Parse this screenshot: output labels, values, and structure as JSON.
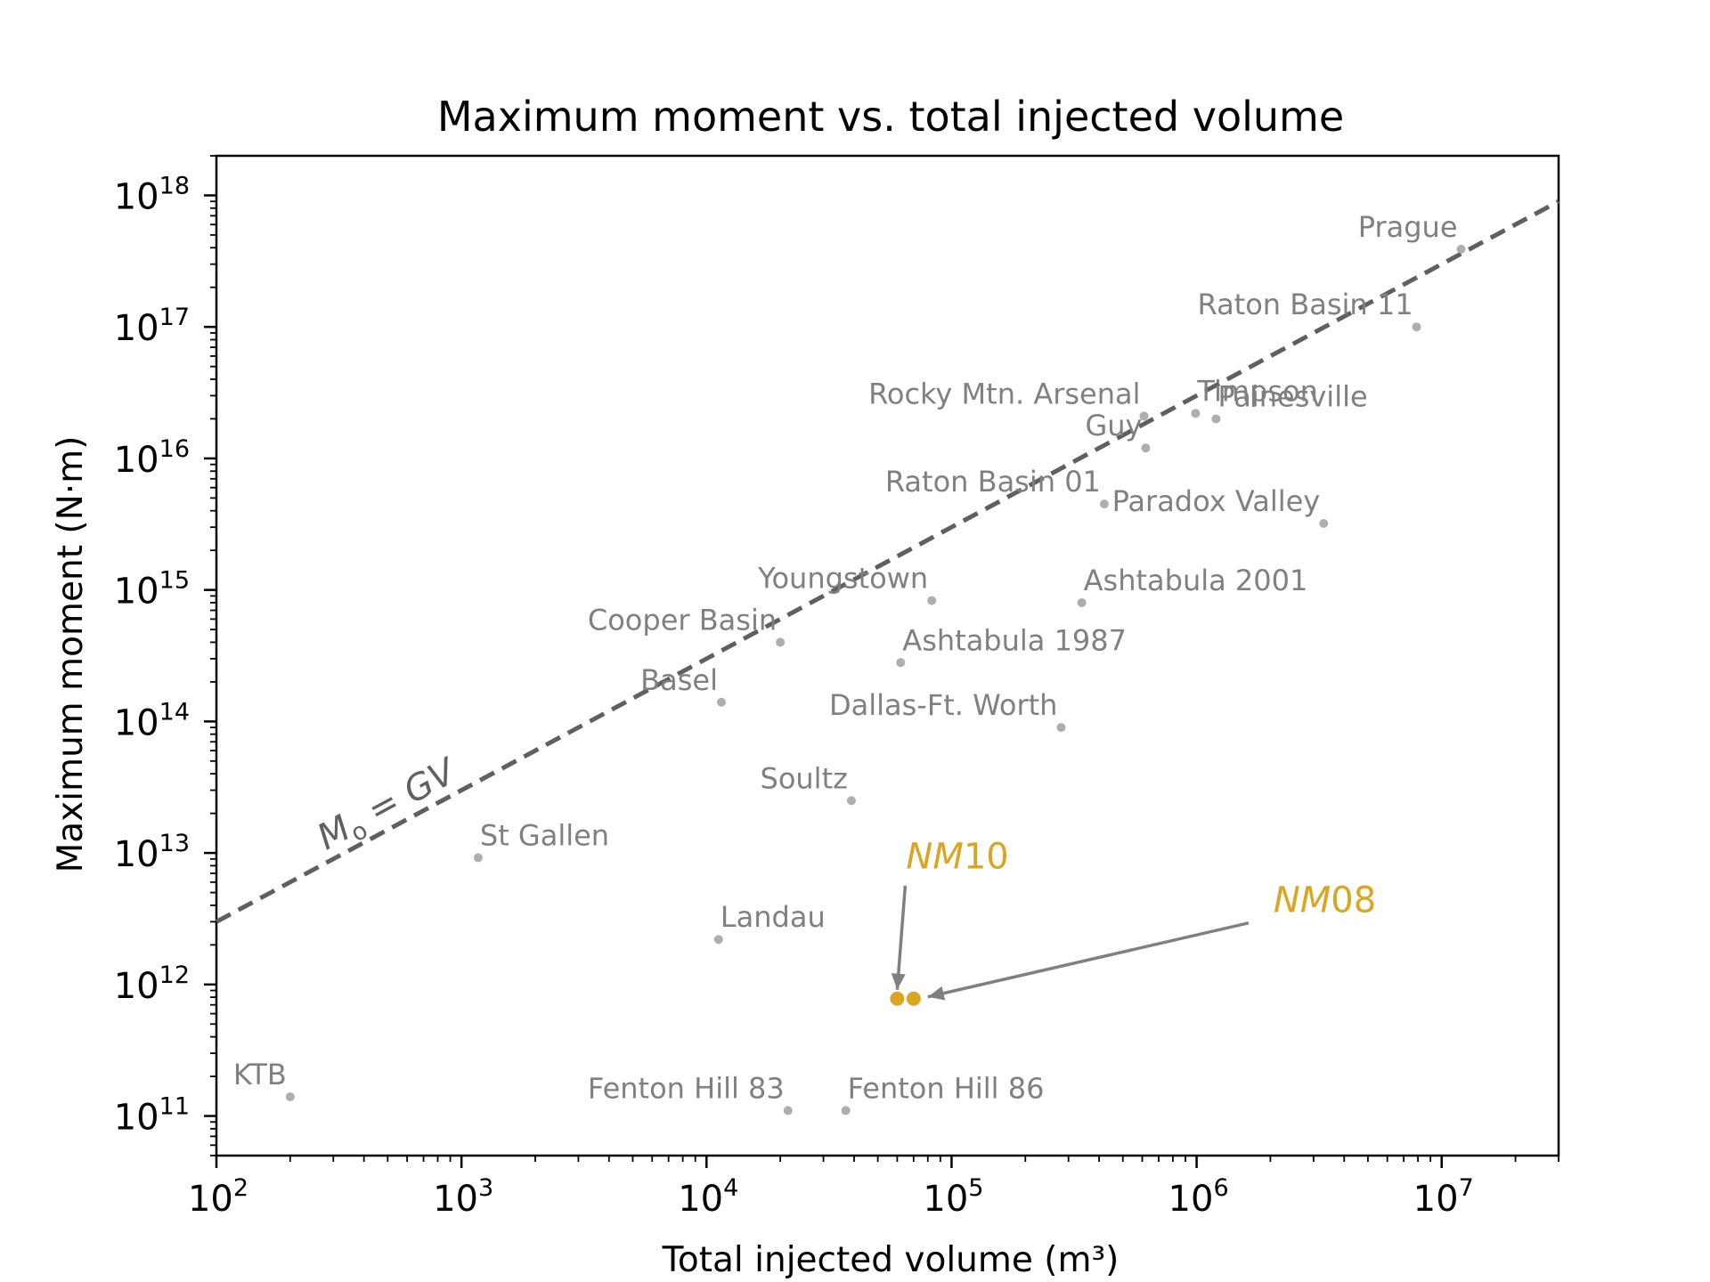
{
  "chart_data": {
    "type": "scatter",
    "title": "Maximum moment vs. total injected volume",
    "xlabel": "Total injected volume (m³)",
    "ylabel": "Maximum moment (N·m)",
    "xscale": "log",
    "yscale": "log",
    "xlim": [
      100,
      30000000
    ],
    "ylim": [
      50000000000,
      2000000000000000000
    ],
    "xticks": [
      {
        "value": 100,
        "base": "10",
        "exp": "2"
      },
      {
        "value": 1000,
        "base": "10",
        "exp": "3"
      },
      {
        "value": 10000,
        "base": "10",
        "exp": "4"
      },
      {
        "value": 100000,
        "base": "10",
        "exp": "5"
      },
      {
        "value": 1000000,
        "base": "10",
        "exp": "6"
      },
      {
        "value": 10000000,
        "base": "10",
        "exp": "7"
      }
    ],
    "yticks": [
      {
        "value": 100000000000,
        "base": "10",
        "exp": "11"
      },
      {
        "value": 1000000000000,
        "base": "10",
        "exp": "12"
      },
      {
        "value": 10000000000000,
        "base": "10",
        "exp": "13"
      },
      {
        "value": 100000000000000,
        "base": "10",
        "exp": "14"
      },
      {
        "value": 1000000000000000,
        "base": "10",
        "exp": "15"
      },
      {
        "value": 10000000000000000,
        "base": "10",
        "exp": "16"
      },
      {
        "value": 100000000000000000,
        "base": "10",
        "exp": "17"
      },
      {
        "value": 1000000000000000000,
        "base": "10",
        "exp": "18"
      }
    ],
    "grid": false,
    "point_color": "#A0A0A0",
    "label_color": "#808080",
    "highlight_color": "#DAA520",
    "line_color": "#606060",
    "points": [
      {
        "name": "KTB",
        "x": 200,
        "y": 140000000000,
        "anchor": "end"
      },
      {
        "name": "Fenton Hill 83",
        "x": 21500,
        "y": 110000000000,
        "anchor": "end"
      },
      {
        "name": "Fenton Hill 86",
        "x": 37000,
        "y": 110000000000,
        "anchor": "start"
      },
      {
        "name": "Landau",
        "x": 11200,
        "y": 2200000000000,
        "anchor": "start"
      },
      {
        "name": "St Gallen",
        "x": 1170,
        "y": 9200000000000,
        "anchor": "start"
      },
      {
        "name": "Soultz",
        "x": 39000,
        "y": 25000000000000,
        "anchor": "end"
      },
      {
        "name": "Basel",
        "x": 11500,
        "y": 140000000000000,
        "anchor": "end"
      },
      {
        "name": "Cooper Basin",
        "x": 20000,
        "y": 400000000000000,
        "anchor": "end"
      },
      {
        "name": "Ashtabula 1987",
        "x": 62000,
        "y": 280000000000000,
        "anchor": "start"
      },
      {
        "name": "Dallas-Ft. Worth",
        "x": 280000,
        "y": 90000000000000,
        "anchor": "end"
      },
      {
        "name": "Youngstown",
        "x": 83000,
        "y": 830000000000000,
        "anchor": "end"
      },
      {
        "name": "Ashtabula 2001",
        "x": 340000,
        "y": 800000000000000,
        "anchor": "start"
      },
      {
        "name": "Raton Basin 01",
        "x": 420000,
        "y": 4500000000000000,
        "anchor": "end"
      },
      {
        "name": "Paradox Valley",
        "x": 3300000,
        "y": 3200000000000000,
        "anchor": "end"
      },
      {
        "name": "Rocky Mtn. Arsenal",
        "x": 610000,
        "y": 21000000000000000,
        "anchor": "end"
      },
      {
        "name": "Guy",
        "x": 620000,
        "y": 12000000000000000,
        "anchor": "end"
      },
      {
        "name": "Timpson",
        "x": 990000,
        "y": 22000000000000000,
        "anchor": "start"
      },
      {
        "name": "Painesville",
        "x": 1200000,
        "y": 20000000000000000,
        "anchor": "start"
      },
      {
        "name": "Raton Basin 11",
        "x": 7900000,
        "y": 100000000000000000,
        "anchor": "end"
      },
      {
        "name": "Prague",
        "x": 12000000,
        "y": 390000000000000000,
        "anchor": "end"
      }
    ],
    "highlights": [
      {
        "name_base": "NM",
        "name_suffix": "10",
        "x": 60000,
        "y": 780000000000
      },
      {
        "name_base": "NM",
        "name_suffix": "08",
        "x": 70000,
        "y": 780000000000
      }
    ],
    "reference_line": {
      "label_base": "M",
      "label_sub": "o",
      "label_rest": "GV",
      "shear_modulus": 30000000000
    }
  }
}
